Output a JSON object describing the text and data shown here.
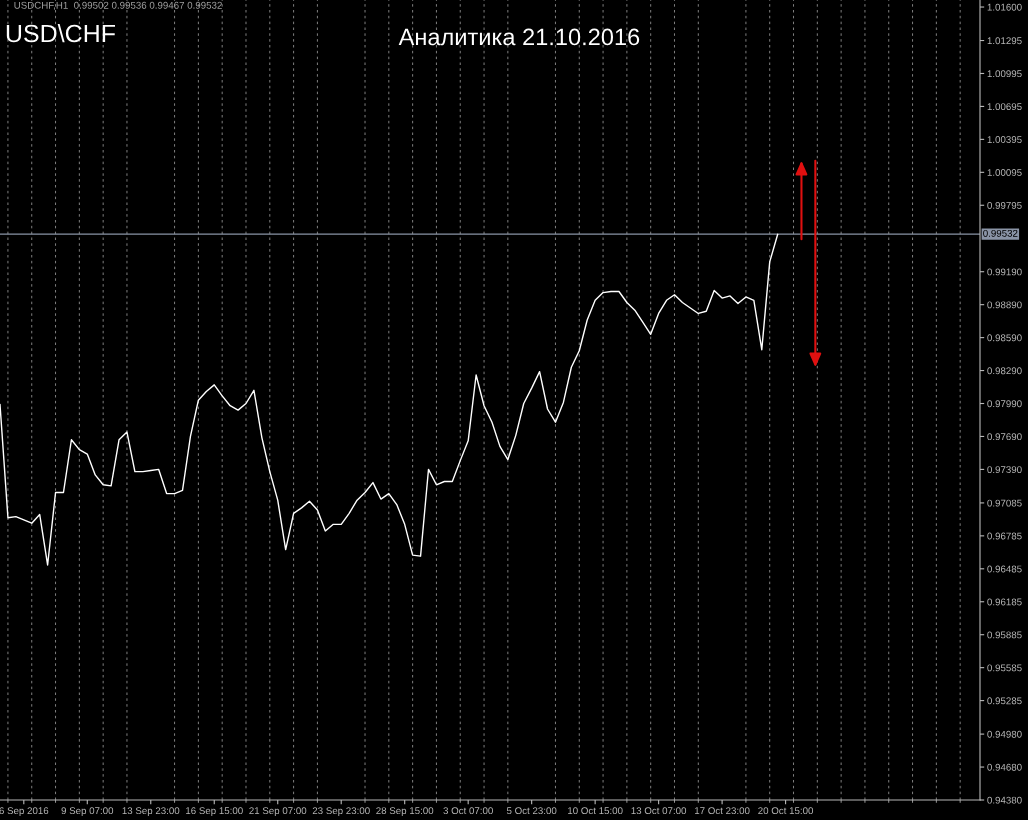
{
  "chart_data": {
    "type": "line",
    "title": "Аналитика 21.10.2016",
    "subtitle": "USD\\CHF",
    "annotations": [
      "USDCHF,H1  0.99502 0.99536 0.99467 0.99532"
    ],
    "categories": [
      null,
      null,
      null,
      "6 Sep 2016",
      null,
      null,
      null,
      null,
      null,
      null,
      null,
      "9 Sep 07:00",
      null,
      null,
      null,
      null,
      null,
      null,
      null,
      "13 Sep 23:00",
      null,
      null,
      null,
      null,
      null,
      null,
      null,
      "16 Sep 15:00",
      null,
      null,
      null,
      null,
      null,
      null,
      null,
      "21 Sep 07:00",
      null,
      null,
      null,
      null,
      null,
      null,
      null,
      "23 Sep 23:00",
      null,
      null,
      null,
      null,
      null,
      null,
      null,
      "28 Sep 15:00",
      null,
      null,
      null,
      null,
      null,
      null,
      null,
      "3 Oct 07:00",
      null,
      null,
      null,
      null,
      null,
      null,
      null,
      "5 Oct 23:00",
      null,
      null,
      null,
      null,
      null,
      null,
      null,
      "10 Oct 15:00",
      null,
      null,
      null,
      null,
      null,
      null,
      null,
      "13 Oct 07:00",
      null,
      null,
      null,
      null,
      null,
      null,
      null,
      "17 Oct 23:00",
      null,
      null,
      null,
      null,
      null,
      null,
      null,
      "20 Oct 15:00",
      null,
      null,
      null,
      null,
      null,
      null,
      null,
      null,
      null,
      null,
      null,
      null,
      null,
      null,
      null,
      null,
      null,
      null,
      null,
      null,
      null,
      null,
      null,
      null
    ],
    "series": [
      {
        "color": "#ffffff",
        "values": [
          0.9798,
          0.9695,
          0.9696,
          0.9693,
          0.969,
          0.9698,
          0.9652,
          0.9718,
          0.9718,
          0.9766,
          0.9757,
          0.9753,
          0.9734,
          0.9725,
          0.9724,
          0.9766,
          0.9773,
          0.9737,
          0.9737,
          0.9738,
          0.9739,
          0.9717,
          0.9717,
          0.972,
          0.9769,
          0.9802,
          0.981,
          0.9816,
          0.9806,
          0.9797,
          0.9793,
          0.9799,
          0.9811,
          0.9768,
          0.9737,
          0.9711,
          0.9666,
          0.9699,
          0.9704,
          0.971,
          0.9702,
          0.9683,
          0.9689,
          0.9689,
          0.9699,
          0.9711,
          0.9718,
          0.9727,
          0.9712,
          0.9717,
          0.9707,
          0.9689,
          0.9661,
          0.966,
          0.9739,
          0.9725,
          0.9728,
          0.9728,
          0.9747,
          0.9765,
          0.9825,
          0.9797,
          0.9782,
          0.976,
          0.9748,
          0.977,
          0.9799,
          0.9813,
          0.9828,
          0.9794,
          0.9782,
          0.98,
          0.9832,
          0.9847,
          0.9875,
          0.9893,
          0.99,
          0.9901,
          0.9901,
          0.9891,
          0.9884,
          0.9873,
          0.9862,
          0.9881,
          0.9893,
          0.9898,
          0.9891,
          0.9886,
          0.9881,
          0.9883,
          0.9902,
          0.9895,
          0.9897,
          0.989,
          0.9896,
          0.9893,
          0.9848,
          0.9928,
          0.9953,
          null,
          null,
          null,
          null,
          null,
          null,
          null,
          null,
          null,
          null,
          null,
          null,
          null,
          null,
          null,
          null,
          null,
          null,
          null,
          null,
          null,
          null,
          null,
          null,
          null
        ]
      }
    ],
    "ylim": [
      0.9438,
      1.01664
    ],
    "yticks": [
      {
        "value": 1.016,
        "label": "1.01600"
      },
      {
        "value": 1.01295,
        "label": "1.01295"
      },
      {
        "value": 1.00995,
        "label": "1.00995"
      },
      {
        "value": 1.00695,
        "label": "1.00695"
      },
      {
        "value": 1.00395,
        "label": "1.00395"
      },
      {
        "value": 1.00095,
        "label": "1.00095"
      },
      {
        "value": 0.99795,
        "label": "0.99795"
      },
      {
        "value": 0.9919,
        "label": "0.99190"
      },
      {
        "value": 0.9889,
        "label": "0.98890"
      },
      {
        "value": 0.9859,
        "label": "0.98590"
      },
      {
        "value": 0.9829,
        "label": "0.98290"
      },
      {
        "value": 0.9799,
        "label": "0.97990"
      },
      {
        "value": 0.9769,
        "label": "0.97690"
      },
      {
        "value": 0.9739,
        "label": "0.97390"
      },
      {
        "value": 0.97085,
        "label": "0.97085"
      },
      {
        "value": 0.96785,
        "label": "0.96785"
      },
      {
        "value": 0.96485,
        "label": "0.96485"
      },
      {
        "value": 0.96185,
        "label": "0.96185"
      },
      {
        "value": 0.95885,
        "label": "0.95885"
      },
      {
        "value": 0.95585,
        "label": "0.95585"
      },
      {
        "value": 0.95285,
        "label": "0.95285"
      },
      {
        "value": 0.9498,
        "label": "0.94980"
      },
      {
        "value": 0.9468,
        "label": "0.94680"
      },
      {
        "value": 0.9438,
        "label": "0.94380"
      }
    ],
    "ref_lines": [
      {
        "axis": "y",
        "value": 0.99532,
        "label": "0.99532",
        "color": "#8a94a6"
      }
    ],
    "grid": "x",
    "line_style": "solid",
    "marker": "none"
  }
}
